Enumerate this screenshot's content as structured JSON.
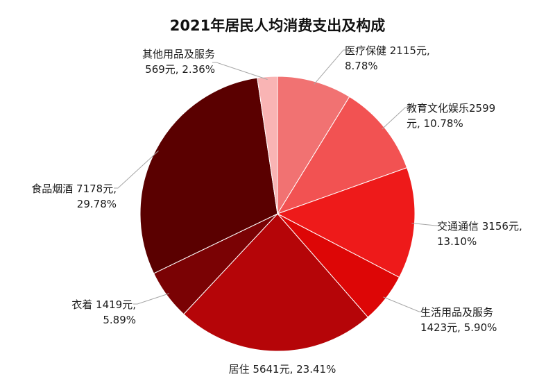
{
  "chart_data": {
    "type": "pie",
    "title": "2021年居民人均消费支出及构成",
    "start_angle_deg": 0,
    "direction": "clockwise",
    "slices": [
      {
        "name": "医疗保健",
        "value": 2115,
        "percent": 8.78,
        "color": "#f17272",
        "label_lines": [
          "医疗保健 2115元,",
          "8.78%"
        ]
      },
      {
        "name": "教育文化娱乐",
        "value": 2599,
        "percent": 10.78,
        "color": "#f25252",
        "label_lines": [
          "教育文化娱乐2599",
          "元, 10.78%"
        ]
      },
      {
        "name": "交通通信",
        "value": 3156,
        "percent": 13.1,
        "color": "#ee1a1a",
        "label_lines": [
          "交通通信 3156元,",
          "13.10%"
        ]
      },
      {
        "name": "生活用品及服务",
        "value": 1423,
        "percent": 5.9,
        "color": "#dd0606",
        "label_lines": [
          "生活用品及服务",
          "1423元, 5.90%"
        ]
      },
      {
        "name": "居住",
        "value": 5641,
        "percent": 23.41,
        "color": "#b50508",
        "label_lines": [
          "居住 5641元, 23.41%"
        ]
      },
      {
        "name": "衣着",
        "value": 1419,
        "percent": 5.89,
        "color": "#7a0204",
        "label_lines": [
          "衣着 1419元,",
          "5.89%"
        ]
      },
      {
        "name": "食品烟酒",
        "value": 7178,
        "percent": 29.78,
        "color": "#5a0000",
        "label_lines": [
          "食品烟酒 7178元,",
          "29.78%"
        ]
      },
      {
        "name": "其他用品及服务",
        "value": 569,
        "percent": 2.36,
        "color": "#f9b4b4",
        "label_lines": [
          "其他用品及服务",
          "569元, 2.36%"
        ]
      }
    ]
  }
}
